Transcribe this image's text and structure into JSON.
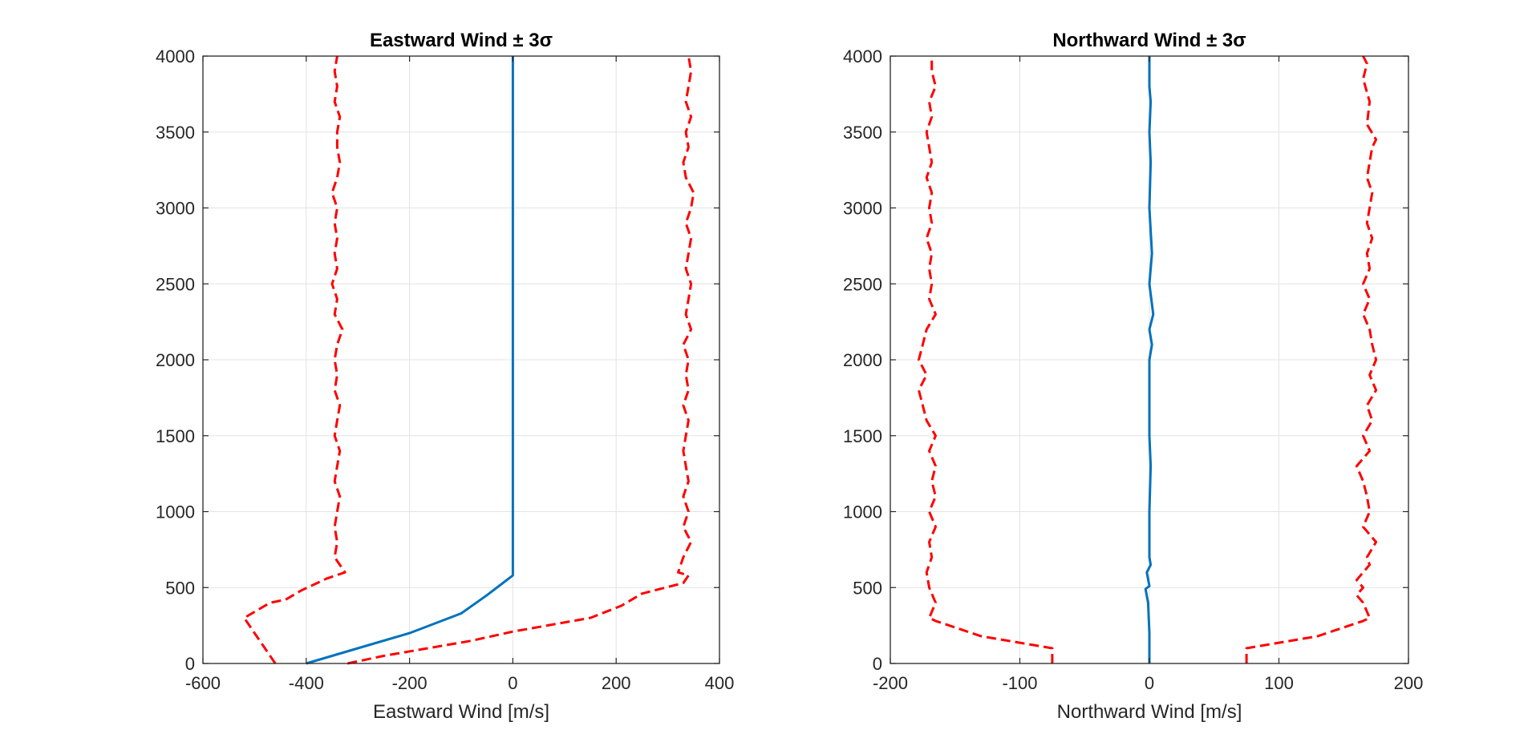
{
  "chart_data": [
    {
      "type": "line",
      "title": "Eastward Wind ± 3σ",
      "xlabel": "Eastward Wind [m/s]",
      "ylabel": "",
      "xlim": [
        -600,
        400
      ],
      "ylim": [
        0,
        4000
      ],
      "xticks": [
        -600,
        -400,
        -200,
        0,
        200,
        400
      ],
      "yticks": [
        0,
        500,
        1000,
        1500,
        2000,
        2500,
        3000,
        3500,
        4000
      ],
      "grid": true,
      "series": [
        {
          "role": "mean",
          "color": "#0072BD",
          "style": "solid",
          "points": [
            [
              -400,
              0
            ],
            [
              -300,
              100
            ],
            [
              -200,
              200
            ],
            [
              -100,
              330
            ],
            [
              -50,
              450
            ],
            [
              0,
              580
            ],
            [
              0,
              800
            ],
            [
              0,
              1000
            ],
            [
              0,
              1500
            ],
            [
              0,
              2000
            ],
            [
              0,
              2500
            ],
            [
              0,
              3000
            ],
            [
              0,
              3500
            ],
            [
              0,
              4000
            ]
          ]
        },
        {
          "role": "upper",
          "color": "#FF0000",
          "style": "dashed",
          "points": [
            [
              -320,
              0
            ],
            [
              -250,
              50
            ],
            [
              -80,
              150
            ],
            [
              0,
              210
            ],
            [
              150,
              300
            ],
            [
              210,
              380
            ],
            [
              230,
              420
            ],
            [
              250,
              460
            ],
            [
              330,
              530
            ],
            [
              340,
              580
            ],
            [
              320,
              600
            ],
            [
              330,
              700
            ],
            [
              345,
              800
            ],
            [
              330,
              900
            ],
            [
              340,
              1000
            ],
            [
              330,
              1100
            ],
            [
              340,
              1200
            ],
            [
              335,
              1300
            ],
            [
              330,
              1400
            ],
            [
              335,
              1500
            ],
            [
              340,
              1600
            ],
            [
              330,
              1700
            ],
            [
              340,
              1800
            ],
            [
              335,
              1900
            ],
            [
              340,
              2000
            ],
            [
              330,
              2100
            ],
            [
              345,
              2200
            ],
            [
              335,
              2300
            ],
            [
              340,
              2400
            ],
            [
              345,
              2500
            ],
            [
              335,
              2600
            ],
            [
              340,
              2700
            ],
            [
              345,
              2800
            ],
            [
              335,
              2900
            ],
            [
              345,
              3000
            ],
            [
              350,
              3100
            ],
            [
              335,
              3200
            ],
            [
              330,
              3300
            ],
            [
              340,
              3400
            ],
            [
              335,
              3500
            ],
            [
              345,
              3600
            ],
            [
              335,
              3700
            ],
            [
              340,
              3800
            ],
            [
              345,
              3900
            ],
            [
              340,
              4000
            ]
          ]
        },
        {
          "role": "lower",
          "color": "#FF0000",
          "style": "dashed",
          "points": [
            [
              -460,
              0
            ],
            [
              -480,
              100
            ],
            [
              -500,
              200
            ],
            [
              -520,
              300
            ],
            [
              -470,
              400
            ],
            [
              -440,
              420
            ],
            [
              -410,
              480
            ],
            [
              -360,
              560
            ],
            [
              -325,
              600
            ],
            [
              -345,
              700
            ],
            [
              -340,
              800
            ],
            [
              -345,
              900
            ],
            [
              -340,
              1000
            ],
            [
              -335,
              1100
            ],
            [
              -345,
              1200
            ],
            [
              -340,
              1300
            ],
            [
              -335,
              1400
            ],
            [
              -345,
              1500
            ],
            [
              -340,
              1600
            ],
            [
              -335,
              1700
            ],
            [
              -345,
              1800
            ],
            [
              -340,
              1900
            ],
            [
              -345,
              2000
            ],
            [
              -340,
              2100
            ],
            [
              -330,
              2200
            ],
            [
              -345,
              2300
            ],
            [
              -340,
              2400
            ],
            [
              -350,
              2500
            ],
            [
              -340,
              2600
            ],
            [
              -345,
              2700
            ],
            [
              -340,
              2800
            ],
            [
              -345,
              2900
            ],
            [
              -340,
              3000
            ],
            [
              -350,
              3100
            ],
            [
              -340,
              3200
            ],
            [
              -335,
              3300
            ],
            [
              -340,
              3400
            ],
            [
              -340,
              3500
            ],
            [
              -335,
              3600
            ],
            [
              -345,
              3700
            ],
            [
              -340,
              3800
            ],
            [
              -345,
              3900
            ],
            [
              -340,
              4000
            ]
          ]
        }
      ]
    },
    {
      "type": "line",
      "title": "Northward Wind ± 3σ",
      "xlabel": "Northward Wind [m/s]",
      "ylabel": "",
      "xlim": [
        -200,
        200
      ],
      "ylim": [
        0,
        4000
      ],
      "xticks": [
        -200,
        -100,
        0,
        100,
        200
      ],
      "yticks": [
        0,
        500,
        1000,
        1500,
        2000,
        2500,
        3000,
        3500,
        4000
      ],
      "grid": true,
      "series": [
        {
          "role": "mean",
          "color": "#0072BD",
          "style": "solid",
          "points": [
            [
              0,
              0
            ],
            [
              0,
              200
            ],
            [
              -1,
              400
            ],
            [
              -3,
              490
            ],
            [
              0,
              510
            ],
            [
              -2,
              600
            ],
            [
              1,
              650
            ],
            [
              0,
              700
            ],
            [
              0,
              1000
            ],
            [
              1,
              1300
            ],
            [
              0,
              1500
            ],
            [
              0,
              2000
            ],
            [
              2,
              2100
            ],
            [
              0,
              2200
            ],
            [
              3,
              2300
            ],
            [
              0,
              2500
            ],
            [
              2,
              2700
            ],
            [
              0,
              3000
            ],
            [
              1,
              3300
            ],
            [
              0,
              3500
            ],
            [
              1,
              3700
            ],
            [
              0,
              3800
            ],
            [
              0,
              4000
            ]
          ]
        },
        {
          "role": "upper",
          "color": "#FF0000",
          "style": "dashed",
          "points": [
            [
              75,
              0
            ],
            [
              75,
              100
            ],
            [
              130,
              180
            ],
            [
              165,
              280
            ],
            [
              170,
              300
            ],
            [
              165,
              400
            ],
            [
              160,
              450
            ],
            [
              165,
              500
            ],
            [
              160,
              550
            ],
            [
              170,
              650
            ],
            [
              168,
              700
            ],
            [
              175,
              800
            ],
            [
              165,
              900
            ],
            [
              170,
              1000
            ],
            [
              168,
              1100
            ],
            [
              165,
              1200
            ],
            [
              160,
              1300
            ],
            [
              170,
              1400
            ],
            [
              165,
              1500
            ],
            [
              172,
              1600
            ],
            [
              168,
              1700
            ],
            [
              175,
              1800
            ],
            [
              170,
              1900
            ],
            [
              175,
              2000
            ],
            [
              172,
              2100
            ],
            [
              170,
              2200
            ],
            [
              165,
              2300
            ],
            [
              170,
              2400
            ],
            [
              165,
              2500
            ],
            [
              170,
              2600
            ],
            [
              168,
              2700
            ],
            [
              172,
              2800
            ],
            [
              168,
              2900
            ],
            [
              170,
              3000
            ],
            [
              172,
              3100
            ],
            [
              168,
              3200
            ],
            [
              170,
              3300
            ],
            [
              172,
              3400
            ],
            [
              175,
              3450
            ],
            [
              168,
              3550
            ],
            [
              170,
              3700
            ],
            [
              165,
              3850
            ],
            [
              168,
              3950
            ],
            [
              165,
              4000
            ]
          ]
        },
        {
          "role": "lower",
          "color": "#FF0000",
          "style": "dashed",
          "points": [
            [
              -75,
              0
            ],
            [
              -75,
              100
            ],
            [
              -130,
              180
            ],
            [
              -165,
              280
            ],
            [
              -170,
              300
            ],
            [
              -165,
              400
            ],
            [
              -170,
              500
            ],
            [
              -172,
              600
            ],
            [
              -168,
              700
            ],
            [
              -170,
              800
            ],
            [
              -165,
              900
            ],
            [
              -170,
              1000
            ],
            [
              -165,
              1100
            ],
            [
              -168,
              1200
            ],
            [
              -165,
              1300
            ],
            [
              -170,
              1400
            ],
            [
              -165,
              1500
            ],
            [
              -172,
              1600
            ],
            [
              -175,
              1700
            ],
            [
              -178,
              1800
            ],
            [
              -172,
              1900
            ],
            [
              -178,
              2000
            ],
            [
              -175,
              2100
            ],
            [
              -172,
              2200
            ],
            [
              -165,
              2300
            ],
            [
              -170,
              2400
            ],
            [
              -168,
              2500
            ],
            [
              -170,
              2600
            ],
            [
              -168,
              2700
            ],
            [
              -172,
              2800
            ],
            [
              -168,
              2900
            ],
            [
              -170,
              3000
            ],
            [
              -168,
              3100
            ],
            [
              -172,
              3200
            ],
            [
              -168,
              3300
            ],
            [
              -170,
              3400
            ],
            [
              -172,
              3500
            ],
            [
              -168,
              3600
            ],
            [
              -170,
              3700
            ],
            [
              -165,
              3800
            ],
            [
              -168,
              3900
            ],
            [
              -168,
              4000
            ]
          ]
        }
      ]
    }
  ]
}
